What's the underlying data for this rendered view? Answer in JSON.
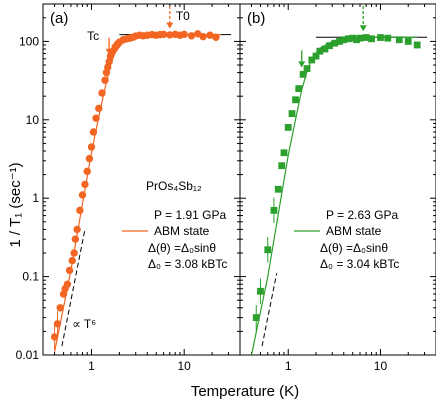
{
  "figure": {
    "ylabel": "1 / T₁ (sec⁻¹)",
    "xlabel": "Temperature (K)"
  },
  "chart_data": [
    {
      "type": "scatter",
      "panel": "(a)",
      "color": "#f26522",
      "marker": "circle",
      "xscale": "log",
      "yscale": "log",
      "xlim": [
        0.3,
        40
      ],
      "ylim": [
        0.01,
        300
      ],
      "xticks": [
        {
          "v": 1,
          "label": "1"
        },
        {
          "v": 10,
          "label": "10"
        }
      ],
      "yticks": [
        {
          "v": 0.01,
          "label": "0.01"
        },
        {
          "v": 0.1,
          "label": "0.1"
        },
        {
          "v": 1,
          "label": "1"
        },
        {
          "v": 10,
          "label": "10"
        },
        {
          "v": 100,
          "label": "100"
        }
      ],
      "grid": false,
      "material": "PrOs₄Sb₁₂",
      "pressure": "P = 1.91 GPa",
      "legend": "ABM state",
      "formula": "Δ(θ) =Δ₀sinθ",
      "gap": "Δ₀ = 3.08 kBTc",
      "Tc_label": "Tc",
      "T0_label": "T0",
      "Tc": 1.55,
      "T0": 7.0,
      "power_law_label": "∝ T⁶",
      "x": [
        0.4,
        0.43,
        0.46,
        0.5,
        0.52,
        0.55,
        0.58,
        0.62,
        0.65,
        0.67,
        0.7,
        0.75,
        0.8,
        0.85,
        0.9,
        0.95,
        1.0,
        1.05,
        1.12,
        1.2,
        1.3,
        1.4,
        1.45,
        1.5,
        1.55,
        1.6,
        1.7,
        1.8,
        1.9,
        2.0,
        2.2,
        2.4,
        2.6,
        2.8,
        3.0,
        3.3,
        3.6,
        4.0,
        4.5,
        5.0,
        5.5,
        6.0,
        7.0,
        8.0,
        9.0,
        10.0,
        12.0,
        14.0,
        16.0,
        19.0,
        22.0
      ],
      "y": [
        0.017,
        0.025,
        0.04,
        0.06,
        0.07,
        0.08,
        0.12,
        0.16,
        0.2,
        0.3,
        0.4,
        0.7,
        1.1,
        1.5,
        2.2,
        3.2,
        4.5,
        7.0,
        10.5,
        14.0,
        22.0,
        32.0,
        40.0,
        47.0,
        55.0,
        65.0,
        75.0,
        85.0,
        92.0,
        98.0,
        105,
        108,
        110,
        113,
        117,
        120,
        118,
        120,
        122,
        120,
        122,
        123,
        121,
        123,
        120,
        123,
        118,
        125,
        115,
        120,
        113
      ],
      "fit_x": [
        0.4,
        0.6,
        0.8,
        1.0,
        1.2,
        1.4,
        1.6,
        1.8,
        2.2,
        3.0,
        4.0,
        6.0,
        10.0,
        15.0,
        25.0
      ],
      "fit_y": [
        0.011,
        0.12,
        0.85,
        3.8,
        11.0,
        25.0,
        50.0,
        72.0,
        98.0,
        112,
        117,
        120,
        122,
        122,
        122
      ],
      "powerlaw_x": [
        0.48,
        0.85
      ],
      "powerlaw_y": [
        0.013,
        0.4
      ],
      "hline": {
        "y": 122,
        "x0": 2.0,
        "x1": 32.0
      }
    },
    {
      "type": "scatter",
      "panel": "(b)",
      "color": "#2ca02c",
      "marker": "square",
      "xscale": "log",
      "yscale": "log",
      "xlim": [
        0.3,
        40
      ],
      "ylim": [
        0.01,
        300
      ],
      "xticks": [
        {
          "v": 1,
          "label": "1"
        },
        {
          "v": 10,
          "label": "10"
        }
      ],
      "yticks": [],
      "grid": false,
      "pressure": "P = 2.63 GPa",
      "legend": "ABM state",
      "formula": "Δ(θ) =Δ₀sinθ",
      "gap": "Δ₀ = 3.04 kBTc",
      "Tc": 1.4,
      "T0": 6.5,
      "x": [
        0.45,
        0.5,
        0.6,
        0.7,
        0.78,
        0.85,
        0.9,
        1.0,
        1.1,
        1.2,
        1.3,
        1.45,
        1.6,
        1.8,
        2.0,
        2.2,
        2.5,
        2.8,
        3.2,
        3.6,
        4.0,
        4.5,
        5.0,
        5.5,
        6.0,
        7.0,
        8.0,
        10.0,
        12.0,
        16.0,
        20.0,
        25.0
      ],
      "y": [
        0.03,
        0.065,
        0.22,
        0.7,
        1.3,
        2.6,
        3.8,
        8.0,
        12.0,
        18.0,
        25.0,
        38.0,
        45.0,
        58.0,
        65.0,
        75.0,
        80.0,
        88.0,
        95.0,
        100,
        105,
        108,
        110,
        105,
        110,
        112,
        108,
        112,
        110,
        105,
        100,
        90.0
      ],
      "yerr_x": [
        0.45,
        0.5,
        0.6,
        0.7
      ],
      "fit_x": [
        0.4,
        0.6,
        0.8,
        1.0,
        1.2,
        1.4,
        1.6,
        1.8,
        2.2,
        3.0,
        4.0,
        6.0,
        10.0,
        15.0,
        25.0
      ],
      "fit_y": [
        0.008,
        0.1,
        0.75,
        3.5,
        10.0,
        24.0,
        42.0,
        60.0,
        82.0,
        100,
        108,
        112,
        113,
        113,
        113
      ],
      "powerlaw_x": [
        0.52,
        0.75
      ],
      "powerlaw_y": [
        0.013,
        0.11
      ],
      "hline": {
        "y": 113,
        "x0": 2.0,
        "x1": 32.0
      }
    }
  ]
}
